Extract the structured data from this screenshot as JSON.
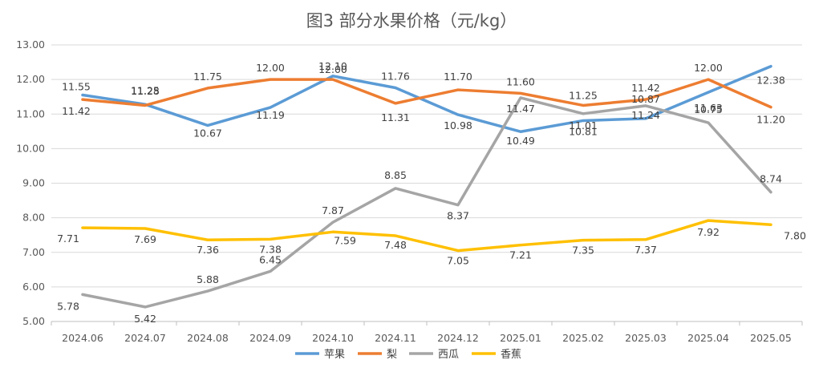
{
  "chart_data": {
    "type": "line",
    "title": "图3  部分水果价格（元/kg）",
    "xlabel": "",
    "ylabel": "",
    "categories": [
      "2024.06",
      "2024.07",
      "2024.08",
      "2024.09",
      "2024.10",
      "2024.11",
      "2024.12",
      "2025.01",
      "2025.02",
      "2025.03",
      "2025.04",
      "2025.05"
    ],
    "ylim": [
      5.0,
      13.0
    ],
    "yticks": [
      "5.00",
      "6.00",
      "7.00",
      "8.00",
      "9.00",
      "10.00",
      "11.00",
      "12.00",
      "13.00"
    ],
    "grid": "horizontal",
    "legend_position": "bottom",
    "series": [
      {
        "name": "苹果",
        "color": "#5B9BD5",
        "values": [
          11.55,
          11.28,
          10.67,
          11.19,
          12.1,
          11.76,
          10.98,
          10.49,
          10.81,
          10.87,
          11.63,
          12.38
        ]
      },
      {
        "name": "梨",
        "color": "#ED7D31",
        "values": [
          11.42,
          11.25,
          11.75,
          12.0,
          12.0,
          11.31,
          11.7,
          11.6,
          11.25,
          11.42,
          12.0,
          11.2
        ]
      },
      {
        "name": "西瓜",
        "color": "#A5A5A5",
        "values": [
          5.78,
          5.42,
          5.88,
          6.45,
          7.87,
          8.85,
          8.37,
          11.47,
          11.01,
          11.24,
          10.75,
          8.74
        ]
      },
      {
        "name": "香蕉",
        "color": "#FFC000",
        "values": [
          7.71,
          7.69,
          7.36,
          7.38,
          7.59,
          7.48,
          7.05,
          7.21,
          7.35,
          7.37,
          7.92,
          7.8
        ]
      }
    ]
  }
}
